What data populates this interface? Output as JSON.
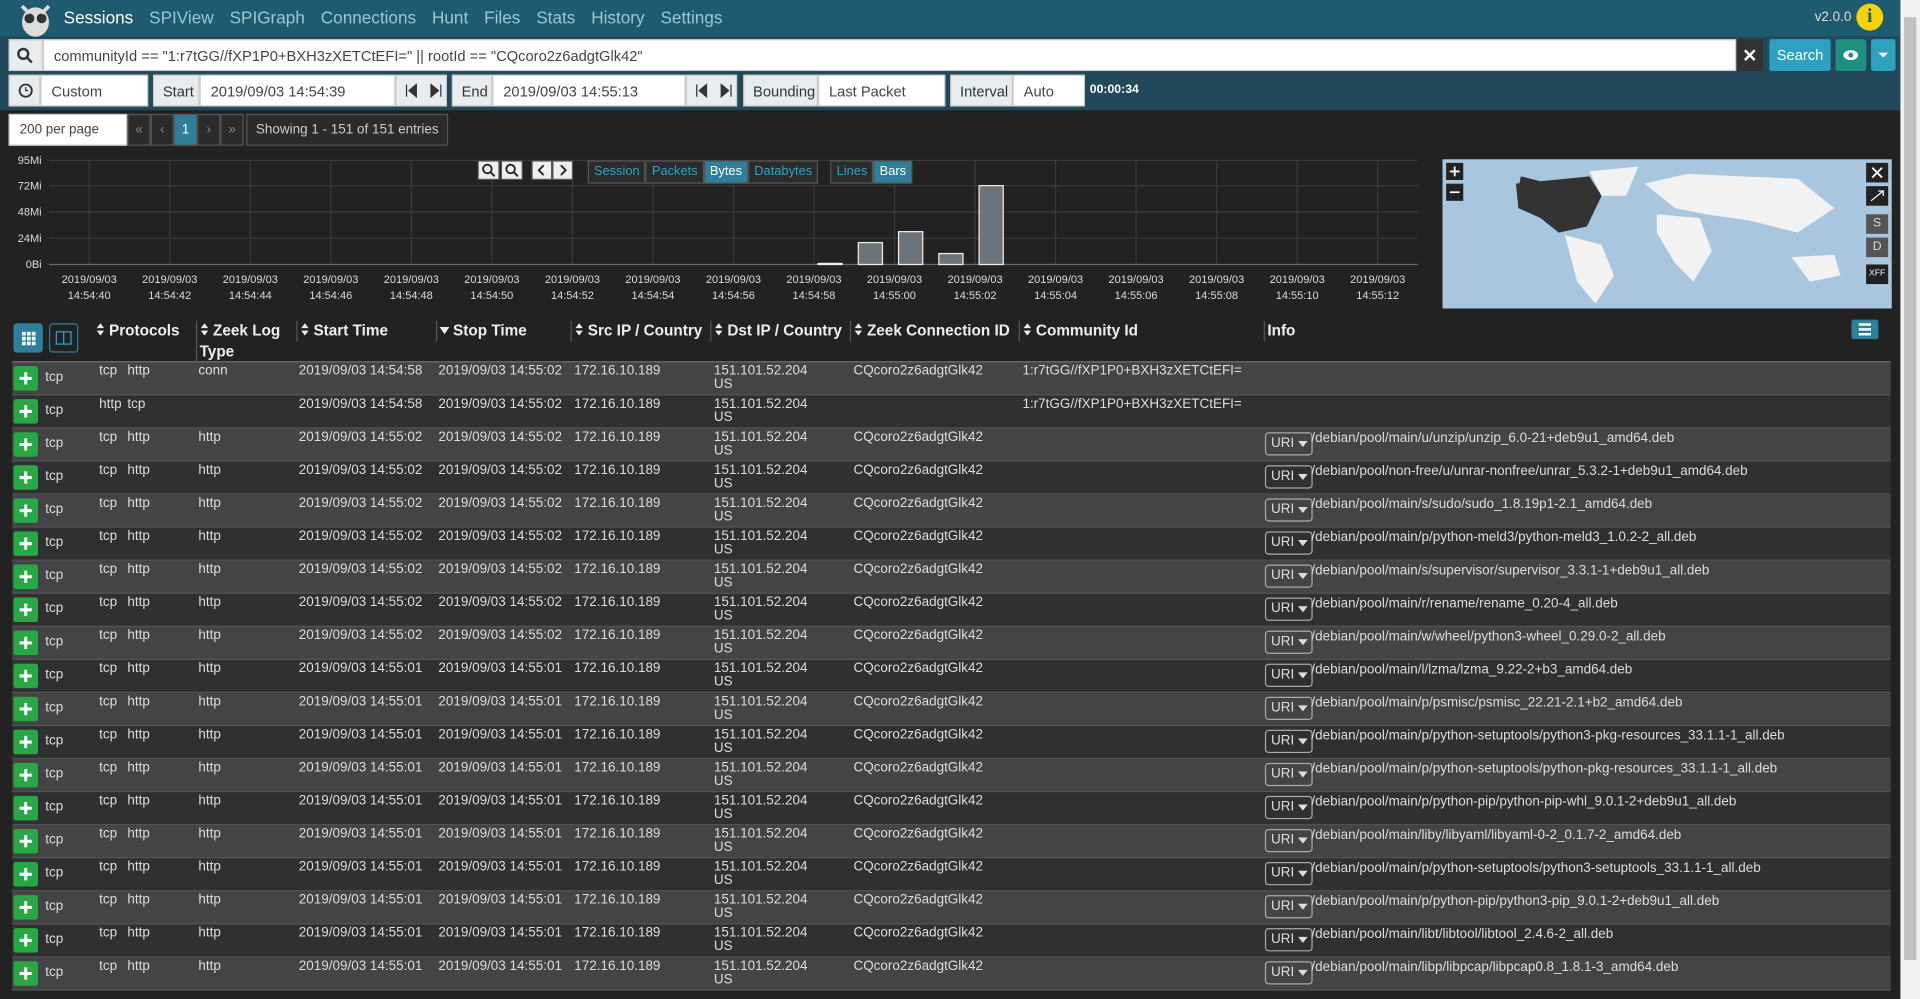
{
  "nav": {
    "items": [
      "Sessions",
      "SPIView",
      "SPIGraph",
      "Connections",
      "Hunt",
      "Files",
      "Stats",
      "History",
      "Settings"
    ],
    "version": "v2.0.0",
    "info_icon": "i"
  },
  "search": {
    "query": "communityId == \"1:r7tGG//fXP1P0+BXH3zXETCtEFI=\" || rootId == \"CQcoro2z6adgtGlk42\"",
    "button": "Search"
  },
  "time": {
    "range": "Custom",
    "start_label": "Start",
    "start": "2019/09/03 14:54:39",
    "end_label": "End",
    "end": "2019/09/03 14:55:13",
    "bounding_label": "Bounding",
    "bounding": "Last Packet",
    "interval_label": "Interval",
    "interval": "Auto",
    "duration": "00:00:34"
  },
  "paging": {
    "per_page": "200 per page",
    "buttons": [
      "«",
      "‹",
      "1",
      "›",
      "»"
    ],
    "showing": "Showing 1 - 151 of 151 entries"
  },
  "chart_controls": {
    "types": [
      "Session",
      "Packets",
      "Bytes",
      "Databytes"
    ],
    "active_type": "Bytes",
    "styles": [
      "Lines",
      "Bars"
    ],
    "active_style": "Bars"
  },
  "chart_data": {
    "type": "bar",
    "x": [
      "2019/09/03 14:54:58",
      "2019/09/03 14:54:59",
      "2019/09/03 14:55:00",
      "2019/09/03 14:55:01",
      "2019/09/03 14:55:02"
    ],
    "values": [
      1,
      20,
      30,
      10,
      72
    ],
    "color": "#6c7479",
    "xlim": [
      "2019/09/03 14:54:39",
      "2019/09/03 14:55:13"
    ],
    "xticks": [
      "2019/09/03 14:54:40",
      "2019/09/03 14:54:42",
      "2019/09/03 14:54:44",
      "2019/09/03 14:54:46",
      "2019/09/03 14:54:48",
      "2019/09/03 14:54:50",
      "2019/09/03 14:54:52",
      "2019/09/03 14:54:54",
      "2019/09/03 14:54:56",
      "2019/09/03 14:54:58",
      "2019/09/03 14:55:00",
      "2019/09/03 14:55:02",
      "2019/09/03 14:55:04",
      "2019/09/03 14:55:06",
      "2019/09/03 14:55:08",
      "2019/09/03 14:55:10",
      "2019/09/03 14:55:12"
    ],
    "ylim": [
      0,
      95
    ],
    "yticks": [
      {
        "value": 0,
        "label": "0Bi"
      },
      {
        "value": 24,
        "label": "24Mi"
      },
      {
        "value": 48,
        "label": "48Mi"
      },
      {
        "value": 72,
        "label": "72Mi"
      },
      {
        "value": 95,
        "label": "95Mi"
      }
    ],
    "grid": true
  },
  "map": {
    "buttons": [
      "S",
      "D",
      "XFF"
    ]
  },
  "table": {
    "headers": [
      "Protocols",
      "Zeek Log Type",
      "Start Time",
      "Stop Time",
      "Src IP / Country",
      "Dst IP / Country",
      "Zeek Connection ID",
      "Community Id",
      "Info"
    ],
    "rows": [
      {
        "proto": "tcp",
        "protocols": [
          "tcp",
          "http"
        ],
        "log_type": "conn",
        "start": "2019/09/03 14:54:58",
        "stop": "2019/09/03 14:55:02",
        "src": "172.16.10.189",
        "dst": "151.101.52.204",
        "country": "US",
        "conn_id": "CQcoro2z6adgtGlk42",
        "community_id": "1:r7tGG//fXP1P0+BXH3zXETCtEFI=",
        "info_label": null,
        "uri": null
      },
      {
        "proto": "tcp",
        "protocols": [
          "http",
          "tcp"
        ],
        "log_type": null,
        "start": "2019/09/03 14:54:58",
        "stop": "2019/09/03 14:55:02",
        "src": "172.16.10.189",
        "dst": "151.101.52.204",
        "country": "US",
        "conn_id": null,
        "community_id": "1:r7tGG//fXP1P0+BXH3zXETCtEFI=",
        "info_label": null,
        "uri": null
      },
      {
        "proto": "tcp",
        "protocols": [
          "tcp",
          "http"
        ],
        "log_type": "http",
        "start": "2019/09/03 14:55:02",
        "stop": "2019/09/03 14:55:02",
        "src": "172.16.10.189",
        "dst": "151.101.52.204",
        "country": "US",
        "conn_id": "CQcoro2z6adgtGlk42",
        "community_id": null,
        "info_label": "URI",
        "uri": "/debian/pool/main/u/unzip/unzip_6.0-21+deb9u1_amd64.deb"
      },
      {
        "proto": "tcp",
        "protocols": [
          "tcp",
          "http"
        ],
        "log_type": "http",
        "start": "2019/09/03 14:55:02",
        "stop": "2019/09/03 14:55:02",
        "src": "172.16.10.189",
        "dst": "151.101.52.204",
        "country": "US",
        "conn_id": "CQcoro2z6adgtGlk42",
        "community_id": null,
        "info_label": "URI",
        "uri": "/debian/pool/non-free/u/unrar-nonfree/unrar_5.3.2-1+deb9u1_amd64.deb"
      },
      {
        "proto": "tcp",
        "protocols": [
          "tcp",
          "http"
        ],
        "log_type": "http",
        "start": "2019/09/03 14:55:02",
        "stop": "2019/09/03 14:55:02",
        "src": "172.16.10.189",
        "dst": "151.101.52.204",
        "country": "US",
        "conn_id": "CQcoro2z6adgtGlk42",
        "community_id": null,
        "info_label": "URI",
        "uri": "/debian/pool/main/s/sudo/sudo_1.8.19p1-2.1_amd64.deb"
      },
      {
        "proto": "tcp",
        "protocols": [
          "tcp",
          "http"
        ],
        "log_type": "http",
        "start": "2019/09/03 14:55:02",
        "stop": "2019/09/03 14:55:02",
        "src": "172.16.10.189",
        "dst": "151.101.52.204",
        "country": "US",
        "conn_id": "CQcoro2z6adgtGlk42",
        "community_id": null,
        "info_label": "URI",
        "uri": "/debian/pool/main/p/python-meld3/python-meld3_1.0.2-2_all.deb"
      },
      {
        "proto": "tcp",
        "protocols": [
          "tcp",
          "http"
        ],
        "log_type": "http",
        "start": "2019/09/03 14:55:02",
        "stop": "2019/09/03 14:55:02",
        "src": "172.16.10.189",
        "dst": "151.101.52.204",
        "country": "US",
        "conn_id": "CQcoro2z6adgtGlk42",
        "community_id": null,
        "info_label": "URI",
        "uri": "/debian/pool/main/s/supervisor/supervisor_3.3.1-1+deb9u1_all.deb"
      },
      {
        "proto": "tcp",
        "protocols": [
          "tcp",
          "http"
        ],
        "log_type": "http",
        "start": "2019/09/03 14:55:02",
        "stop": "2019/09/03 14:55:02",
        "src": "172.16.10.189",
        "dst": "151.101.52.204",
        "country": "US",
        "conn_id": "CQcoro2z6adgtGlk42",
        "community_id": null,
        "info_label": "URI",
        "uri": "/debian/pool/main/r/rename/rename_0.20-4_all.deb"
      },
      {
        "proto": "tcp",
        "protocols": [
          "tcp",
          "http"
        ],
        "log_type": "http",
        "start": "2019/09/03 14:55:02",
        "stop": "2019/09/03 14:55:02",
        "src": "172.16.10.189",
        "dst": "151.101.52.204",
        "country": "US",
        "conn_id": "CQcoro2z6adgtGlk42",
        "community_id": null,
        "info_label": "URI",
        "uri": "/debian/pool/main/w/wheel/python3-wheel_0.29.0-2_all.deb"
      },
      {
        "proto": "tcp",
        "protocols": [
          "tcp",
          "http"
        ],
        "log_type": "http",
        "start": "2019/09/03 14:55:01",
        "stop": "2019/09/03 14:55:01",
        "src": "172.16.10.189",
        "dst": "151.101.52.204",
        "country": "US",
        "conn_id": "CQcoro2z6adgtGlk42",
        "community_id": null,
        "info_label": "URI",
        "uri": "/debian/pool/main/l/lzma/lzma_9.22-2+b3_amd64.deb"
      },
      {
        "proto": "tcp",
        "protocols": [
          "tcp",
          "http"
        ],
        "log_type": "http",
        "start": "2019/09/03 14:55:01",
        "stop": "2019/09/03 14:55:01",
        "src": "172.16.10.189",
        "dst": "151.101.52.204",
        "country": "US",
        "conn_id": "CQcoro2z6adgtGlk42",
        "community_id": null,
        "info_label": "URI",
        "uri": "/debian/pool/main/p/psmisc/psmisc_22.21-2.1+b2_amd64.deb"
      },
      {
        "proto": "tcp",
        "protocols": [
          "tcp",
          "http"
        ],
        "log_type": "http",
        "start": "2019/09/03 14:55:01",
        "stop": "2019/09/03 14:55:01",
        "src": "172.16.10.189",
        "dst": "151.101.52.204",
        "country": "US",
        "conn_id": "CQcoro2z6adgtGlk42",
        "community_id": null,
        "info_label": "URI",
        "uri": "/debian/pool/main/p/python-setuptools/python3-pkg-resources_33.1.1-1_all.deb"
      },
      {
        "proto": "tcp",
        "protocols": [
          "tcp",
          "http"
        ],
        "log_type": "http",
        "start": "2019/09/03 14:55:01",
        "stop": "2019/09/03 14:55:01",
        "src": "172.16.10.189",
        "dst": "151.101.52.204",
        "country": "US",
        "conn_id": "CQcoro2z6adgtGlk42",
        "community_id": null,
        "info_label": "URI",
        "uri": "/debian/pool/main/p/python-setuptools/python-pkg-resources_33.1.1-1_all.deb"
      },
      {
        "proto": "tcp",
        "protocols": [
          "tcp",
          "http"
        ],
        "log_type": "http",
        "start": "2019/09/03 14:55:01",
        "stop": "2019/09/03 14:55:01",
        "src": "172.16.10.189",
        "dst": "151.101.52.204",
        "country": "US",
        "conn_id": "CQcoro2z6adgtGlk42",
        "community_id": null,
        "info_label": "URI",
        "uri": "/debian/pool/main/p/python-pip/python-pip-whl_9.0.1-2+deb9u1_all.deb"
      },
      {
        "proto": "tcp",
        "protocols": [
          "tcp",
          "http"
        ],
        "log_type": "http",
        "start": "2019/09/03 14:55:01",
        "stop": "2019/09/03 14:55:01",
        "src": "172.16.10.189",
        "dst": "151.101.52.204",
        "country": "US",
        "conn_id": "CQcoro2z6adgtGlk42",
        "community_id": null,
        "info_label": "URI",
        "uri": "/debian/pool/main/liby/libyaml/libyaml-0-2_0.1.7-2_amd64.deb"
      },
      {
        "proto": "tcp",
        "protocols": [
          "tcp",
          "http"
        ],
        "log_type": "http",
        "start": "2019/09/03 14:55:01",
        "stop": "2019/09/03 14:55:01",
        "src": "172.16.10.189",
        "dst": "151.101.52.204",
        "country": "US",
        "conn_id": "CQcoro2z6adgtGlk42",
        "community_id": null,
        "info_label": "URI",
        "uri": "/debian/pool/main/p/python-setuptools/python3-setuptools_33.1.1-1_all.deb"
      },
      {
        "proto": "tcp",
        "protocols": [
          "tcp",
          "http"
        ],
        "log_type": "http",
        "start": "2019/09/03 14:55:01",
        "stop": "2019/09/03 14:55:01",
        "src": "172.16.10.189",
        "dst": "151.101.52.204",
        "country": "US",
        "conn_id": "CQcoro2z6adgtGlk42",
        "community_id": null,
        "info_label": "URI",
        "uri": "/debian/pool/main/p/python-pip/python3-pip_9.0.1-2+deb9u1_all.deb"
      },
      {
        "proto": "tcp",
        "protocols": [
          "tcp",
          "http"
        ],
        "log_type": "http",
        "start": "2019/09/03 14:55:01",
        "stop": "2019/09/03 14:55:01",
        "src": "172.16.10.189",
        "dst": "151.101.52.204",
        "country": "US",
        "conn_id": "CQcoro2z6adgtGlk42",
        "community_id": null,
        "info_label": "URI",
        "uri": "/debian/pool/main/libt/libtool/libtool_2.4.6-2_all.deb"
      },
      {
        "proto": "tcp",
        "protocols": [
          "tcp",
          "http"
        ],
        "log_type": "http",
        "start": "2019/09/03 14:55:01",
        "stop": "2019/09/03 14:55:01",
        "src": "172.16.10.189",
        "dst": "151.101.52.204",
        "country": "US",
        "conn_id": "CQcoro2z6adgtGlk42",
        "community_id": null,
        "info_label": "URI",
        "uri": "/debian/pool/main/libp/libpcap/libpcap0.8_1.8.1-3_amd64.deb"
      }
    ]
  }
}
